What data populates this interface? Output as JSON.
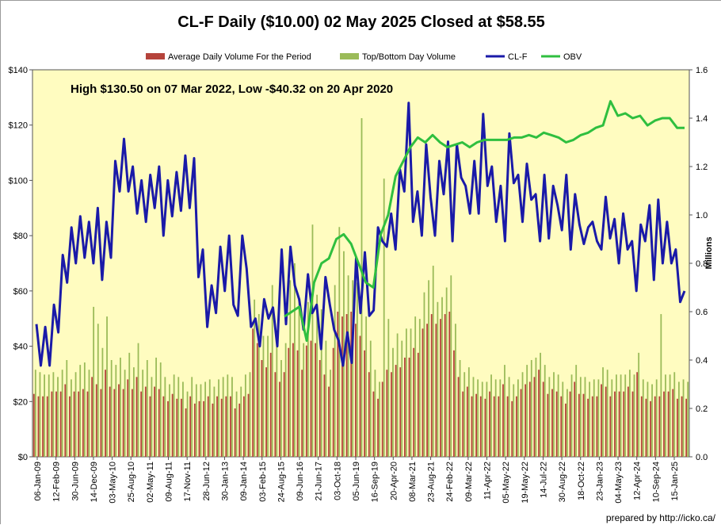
{
  "chart_data": {
    "type": "line",
    "title": "CL-F Daily ($10.00)  02 May 2025 Closed at $58.55",
    "annotation": "High $130.50 on 07 Mar 2022, Low -$40.32 on 20 Apr 2020",
    "credit": "prepared by http://icko.ca/",
    "y2label": "Millions",
    "ylim": [
      0,
      140
    ],
    "y2lim": [
      0.0,
      1.6
    ],
    "yticks": [
      "$0",
      "$20",
      "$40",
      "$60",
      "$80",
      "$100",
      "$120",
      "$140"
    ],
    "y2ticks": [
      "0.0",
      "0.2",
      "0.4",
      "0.6",
      "0.8",
      "1.0",
      "1.2",
      "1.4",
      "1.6"
    ],
    "legend": [
      {
        "name": "Average Daily Volume For the Period",
        "kind": "bar",
        "color": "#b5433b"
      },
      {
        "name": "Top/Bottom Day Volume",
        "kind": "bar",
        "color": "#9bbb59"
      },
      {
        "name": "CL-F",
        "kind": "line",
        "color": "#1a1aa8"
      },
      {
        "name": "OBV",
        "kind": "line",
        "color": "#2fbf3f"
      }
    ],
    "x_labels": [
      "06-Jan-09",
      "12-Feb-09",
      "30-Jun-09",
      "14-Dec-09",
      "03-May-10",
      "25-Aug-10",
      "02-May-11",
      "09-Aug-11",
      "17-Nov-11",
      "28-Jun-12",
      "30-Jan-13",
      "09-Jan-14",
      "03-Feb-15",
      "24-Aug-15",
      "09-Jun-16",
      "21-Jun-17",
      "03-Oct-18",
      "05-Jun-19",
      "16-Sep-19",
      "20-Apr-20",
      "08-Mar-21",
      "23-Aug-21",
      "24-Feb-22",
      "09-Mar-22",
      "11-Apr-22",
      "05-May-22",
      "19-May-22",
      "14-Jul-22",
      "30-Aug-22",
      "18-Oct-22",
      "23-Jan-23",
      "04-May-23",
      "12-Apr-24",
      "10-Sep-24",
      "15-Jan-25"
    ],
    "price": [
      48,
      33,
      47,
      33,
      55,
      45,
      73,
      63,
      83,
      70,
      87,
      72,
      85,
      70,
      90,
      64,
      85,
      72,
      107,
      96,
      115,
      96,
      105,
      88,
      100,
      85,
      102,
      90,
      105,
      80,
      100,
      87,
      103,
      89,
      109,
      90,
      108,
      65,
      75,
      47,
      62,
      52,
      76,
      60,
      80,
      55,
      51,
      80,
      68,
      47,
      50,
      40,
      57,
      50,
      54,
      40,
      75,
      48,
      76,
      62,
      57,
      46,
      66,
      52,
      55,
      39,
      65,
      55,
      46,
      42,
      33,
      45,
      34,
      72,
      52,
      74,
      51,
      53,
      83,
      78,
      76,
      88,
      75,
      104,
      96,
      128,
      85,
      96,
      80,
      113,
      94,
      80,
      107,
      95,
      114,
      78,
      113,
      101,
      98,
      88,
      107,
      88,
      124,
      98,
      105,
      85,
      98,
      78,
      117,
      99,
      102,
      85,
      106,
      93,
      95,
      78,
      102,
      79,
      98,
      91,
      82,
      102,
      75,
      95,
      84,
      77,
      83,
      85,
      78,
      75,
      94,
      79,
      86,
      70,
      88,
      75,
      78,
      60,
      84,
      78,
      91,
      64,
      93,
      70,
      85,
      70,
      75,
      56,
      60
    ],
    "obv": [
      0.58,
      0.6,
      0.62,
      0.48,
      0.72,
      0.8,
      0.82,
      0.9,
      0.92,
      0.88,
      0.8,
      0.72,
      0.7,
      0.92,
      1.0,
      1.16,
      1.22,
      1.28,
      1.32,
      1.3,
      1.33,
      1.3,
      1.28,
      1.29,
      1.3,
      1.28,
      1.3,
      1.31,
      1.31,
      1.31,
      1.31,
      1.32,
      1.32,
      1.33,
      1.32,
      1.34,
      1.33,
      1.32,
      1.3,
      1.31,
      1.33,
      1.34,
      1.36,
      1.37,
      1.47,
      1.41,
      1.42,
      1.4,
      1.41,
      1.37,
      1.39,
      1.4,
      1.4,
      1.36,
      1.36
    ],
    "avg_volume": [
      0.26,
      0.25,
      0.25,
      0.25,
      0.27,
      0.27,
      0.27,
      0.3,
      0.25,
      0.27,
      0.27,
      0.28,
      0.27,
      0.33,
      0.3,
      0.28,
      0.36,
      0.29,
      0.28,
      0.3,
      0.28,
      0.32,
      0.28,
      0.33,
      0.27,
      0.29,
      0.25,
      0.29,
      0.28,
      0.25,
      0.23,
      0.26,
      0.24,
      0.24,
      0.2,
      0.25,
      0.22,
      0.23,
      0.23,
      0.25,
      0.22,
      0.25,
      0.24,
      0.25,
      0.25,
      0.2,
      0.22,
      0.25,
      0.26,
      0.53,
      0.47,
      0.4,
      0.37,
      0.43,
      0.35,
      0.31,
      0.35,
      0.45,
      0.47,
      0.44,
      0.36,
      0.46,
      0.48,
      0.47,
      0.4,
      0.34,
      0.29,
      0.45,
      0.6,
      0.58,
      0.59,
      0.6,
      0.55,
      0.5,
      0.44,
      0.35,
      0.27,
      0.24,
      0.31,
      0.36,
      0.35,
      0.38,
      0.37,
      0.41,
      0.41,
      0.45,
      0.43,
      0.53,
      0.55,
      0.59,
      0.55,
      0.57,
      0.59,
      0.6,
      0.44,
      0.33,
      0.27,
      0.29,
      0.25,
      0.26,
      0.25,
      0.24,
      0.27,
      0.25,
      0.25,
      0.3,
      0.25,
      0.23,
      0.25,
      0.28,
      0.3,
      0.31,
      0.33,
      0.36,
      0.31,
      0.26,
      0.28,
      0.27,
      0.25,
      0.22,
      0.27,
      0.31,
      0.26,
      0.26,
      0.24,
      0.25,
      0.25,
      0.3,
      0.29,
      0.25,
      0.27,
      0.27,
      0.27,
      0.29,
      0.27,
      0.35,
      0.25,
      0.24,
      0.23,
      0.25,
      0.25,
      0.27,
      0.27,
      0.28,
      0.24,
      0.25,
      0.24
    ],
    "top_volume": [
      0.36,
      0.35,
      0.34,
      0.34,
      0.35,
      0.33,
      0.36,
      0.4,
      0.32,
      0.35,
      0.38,
      0.39,
      0.36,
      0.62,
      0.55,
      0.45,
      0.58,
      0.4,
      0.38,
      0.41,
      0.36,
      0.43,
      0.37,
      0.47,
      0.36,
      0.4,
      0.33,
      0.41,
      0.39,
      0.33,
      0.3,
      0.34,
      0.33,
      0.31,
      0.27,
      0.33,
      0.3,
      0.3,
      0.31,
      0.32,
      0.29,
      0.32,
      0.33,
      0.34,
      0.33,
      0.27,
      0.29,
      0.34,
      0.35,
      0.65,
      0.59,
      0.5,
      0.5,
      0.71,
      0.46,
      0.4,
      0.47,
      0.73,
      0.8,
      0.64,
      0.47,
      0.64,
      0.96,
      0.67,
      0.61,
      0.48,
      0.36,
      0.71,
      0.95,
      0.85,
      0.75,
      0.73,
      0.72,
      1.4,
      0.58,
      0.48,
      0.36,
      0.31,
      1.15,
      0.57,
      0.45,
      0.51,
      0.48,
      0.53,
      0.53,
      0.58,
      0.57,
      0.68,
      0.73,
      0.79,
      0.64,
      0.66,
      0.7,
      0.75,
      0.55,
      0.4,
      0.35,
      0.37,
      0.33,
      0.32,
      0.31,
      0.31,
      0.34,
      0.32,
      0.32,
      0.38,
      0.33,
      0.3,
      0.32,
      0.35,
      0.38,
      0.4,
      0.41,
      0.43,
      0.38,
      0.33,
      0.35,
      0.34,
      0.31,
      0.28,
      0.34,
      0.38,
      0.33,
      0.33,
      0.31,
      0.32,
      0.32,
      0.37,
      0.36,
      0.32,
      0.34,
      0.34,
      0.34,
      0.36,
      0.34,
      0.43,
      0.32,
      0.31,
      0.3,
      0.32,
      0.59,
      0.34,
      0.34,
      0.35,
      0.31,
      0.32,
      0.31
    ]
  }
}
